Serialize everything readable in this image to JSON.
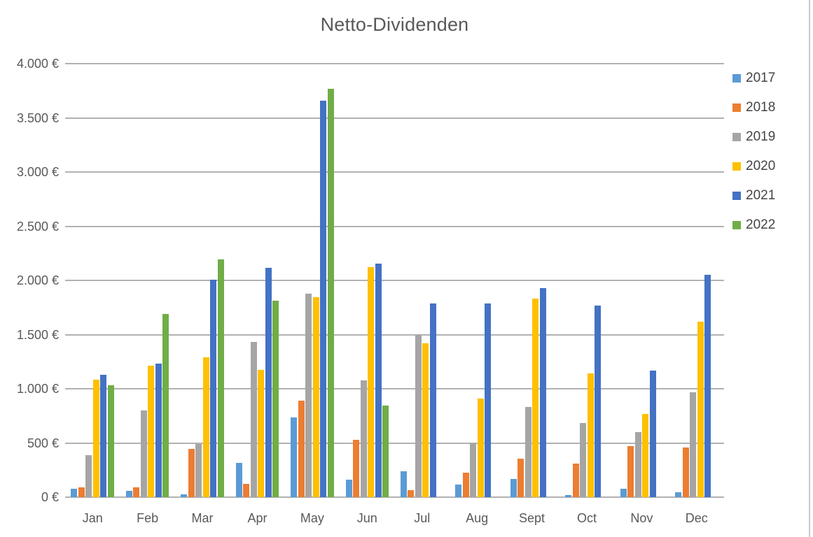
{
  "title": "Netto-Dividenden",
  "chart_data": {
    "type": "bar",
    "title": "Netto-Dividenden",
    "categories": [
      "Jan",
      "Feb",
      "Mar",
      "Apr",
      "May",
      "Jun",
      "Jul",
      "Aug",
      "Sept",
      "Oct",
      "Nov",
      "Dec"
    ],
    "series": [
      {
        "name": "2017",
        "color": "#5B9BD5",
        "values": [
          80,
          55,
          25,
          315,
          735,
          160,
          240,
          115,
          165,
          20,
          80,
          45
        ]
      },
      {
        "name": "2018",
        "color": "#ED7D31",
        "values": [
          90,
          90,
          445,
          120,
          890,
          530,
          65,
          225,
          355,
          310,
          470,
          460
        ]
      },
      {
        "name": "2019",
        "color": "#A5A5A5",
        "values": [
          390,
          800,
          490,
          1430,
          1875,
          1080,
          1500,
          500,
          830,
          685,
          600,
          965
        ]
      },
      {
        "name": "2020",
        "color": "#FFC000",
        "values": [
          1085,
          1210,
          1290,
          1175,
          1845,
          2125,
          1420,
          910,
          1830,
          1145,
          770,
          1620
        ]
      },
      {
        "name": "2021",
        "color": "#4472C4",
        "values": [
          1130,
          1230,
          2005,
          2115,
          3660,
          2155,
          1790,
          1785,
          1930,
          1765,
          1170,
          2050
        ]
      },
      {
        "name": "2022",
        "color": "#70AD47",
        "values": [
          1030,
          1690,
          2195,
          1815,
          3770,
          845,
          null,
          null,
          null,
          null,
          null,
          null
        ]
      }
    ],
    "ylabel": "",
    "xlabel": "",
    "ylim": [
      0,
      4000
    ],
    "ytick_step": 500,
    "ytick_labels": [
      "0 €",
      "500 €",
      "1.000 €",
      "1.500 €",
      "2.000 €",
      "2.500 €",
      "3.000 €",
      "3.500 €",
      "4.000 €"
    ],
    "grid": true,
    "legend_position": "right"
  },
  "colors": {
    "title_text": "#595959",
    "axis_text": "#595959",
    "legend_text": "#444444",
    "gridline": "#B2B2B2",
    "border_line": "#C9C9C9",
    "background": "#FFFFFF"
  }
}
